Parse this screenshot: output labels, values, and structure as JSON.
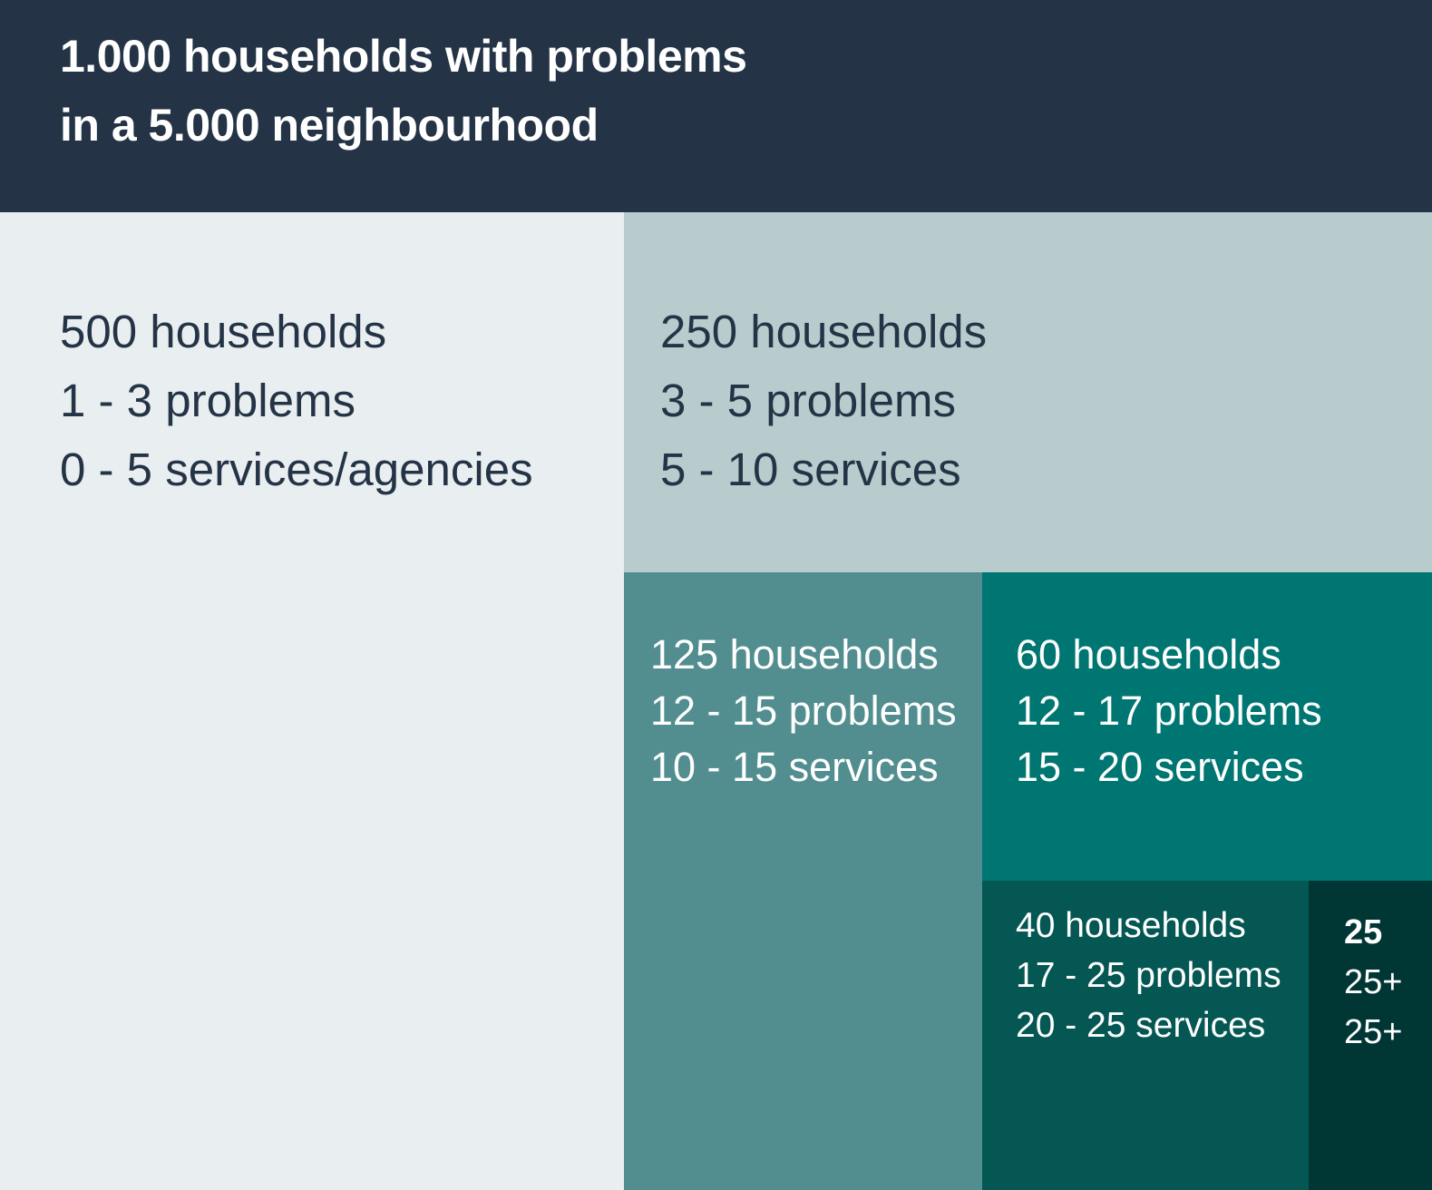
{
  "chart_data": {
    "type": "treemap",
    "title": [
      "1.000 households with problems",
      "in a 5.000 neighbourhood"
    ],
    "colors": {
      "header": "#243446",
      "header_text": "#ffffff",
      "dark_text": "#243446",
      "light_text": "#ffffff"
    },
    "groups": [
      {
        "id": "g1",
        "households": 500,
        "lines": [
          "500 households",
          "1 - 3 problems",
          "0 - 5 services/agencies"
        ],
        "color": "#e9eef1",
        "text_color": "#243446"
      },
      {
        "id": "g2",
        "households": 250,
        "lines": [
          "250 households",
          "3 - 5 problems",
          "5 - 10 services"
        ],
        "color": "#b8cbcd",
        "text_color": "#243446"
      },
      {
        "id": "g3",
        "households": 125,
        "lines": [
          "125 households",
          "12 - 15 problems",
          "10 - 15 services"
        ],
        "color": "#528e8f",
        "text_color": "#ffffff"
      },
      {
        "id": "g4",
        "households": 60,
        "lines": [
          "60 households",
          "12 - 17 problems",
          "15 - 20 services"
        ],
        "color": "#007673",
        "text_color": "#ffffff"
      },
      {
        "id": "g5",
        "households": 40,
        "lines": [
          "40 households",
          "17 - 25 problems",
          "20 - 25 services"
        ],
        "color": "#045753",
        "text_color": "#ffffff"
      },
      {
        "id": "g6",
        "households": 25,
        "lines": [
          "25",
          "25+",
          "25+"
        ],
        "color": "#003634",
        "text_color": "#ffffff"
      }
    ]
  }
}
